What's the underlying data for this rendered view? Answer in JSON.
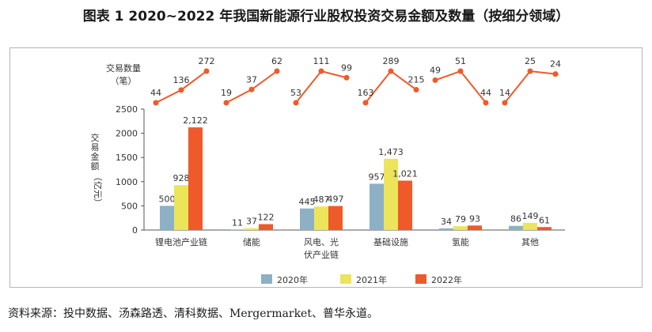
{
  "title": "图表 1  2020~2022 年我国新能源行业股权投资交易金额及数量（按细分领域）",
  "source": "资料来源：投中数据、汤森路透、清科数据、Mergermarket、普华永道。",
  "colors": {
    "2020年": "#8eb0c4",
    "2021年": "#ece45a",
    "2022年": "#ef5a2b",
    "line": "#ef5a2b",
    "axis": "#555555",
    "frame": "#b5b5b5"
  },
  "chart_data": [
    {
      "type": "bar",
      "title": "",
      "xlabel": "",
      "ylabel": "交易金额（亿元）",
      "ylim": [
        0,
        2500
      ],
      "yticks": [
        0,
        500,
        1000,
        1500,
        2000,
        2500
      ],
      "grid": false,
      "legend_position": "bottom",
      "categories": [
        "锂电池产业链",
        "储能",
        "风电、光伏产业链",
        "基础设施",
        "氢能",
        "其他"
      ],
      "series": [
        {
          "name": "2020年",
          "values": [
            500,
            11,
            445,
            957,
            34,
            86
          ],
          "labels": [
            "500",
            "11",
            "445",
            "957",
            "34",
            "86"
          ]
        },
        {
          "name": "2021年",
          "values": [
            928,
            37,
            487,
            1473,
            79,
            149
          ],
          "labels": [
            "928",
            "37",
            "487",
            "1,473",
            "79",
            "149"
          ]
        },
        {
          "name": "2022年",
          "values": [
            2122,
            122,
            497,
            1021,
            93,
            61
          ],
          "labels": [
            "2,122",
            "122",
            "497",
            "1,021",
            "93",
            "61"
          ]
        }
      ]
    },
    {
      "type": "line",
      "ylabel": "交易数量（笔）",
      "categories": [
        "锂电池产业链",
        "储能",
        "风电、光伏产业链",
        "基础设施",
        "氢能",
        "其他"
      ],
      "years": [
        "2020年",
        "2021年",
        "2022年"
      ],
      "values": [
        [
          44,
          136,
          272
        ],
        [
          19,
          37,
          62
        ],
        [
          53,
          111,
          99
        ],
        [
          163,
          289,
          215
        ],
        [
          49,
          51,
          44
        ],
        [
          14,
          25,
          24
        ]
      ]
    }
  ]
}
